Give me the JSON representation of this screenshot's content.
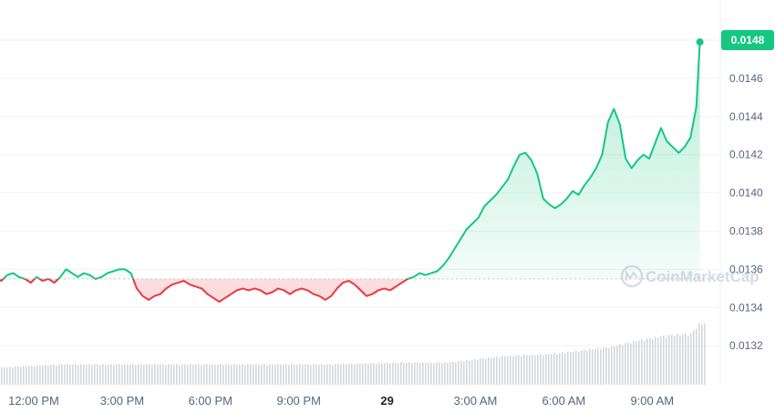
{
  "chart_data": {
    "type": "area",
    "watermark": "CoinMarketCap",
    "y_ticks": [
      "0.0148",
      "0.0146",
      "0.0144",
      "0.0142",
      "0.0140",
      "0.0138",
      "0.0136",
      "0.0134",
      "0.0132"
    ],
    "y_tick_values": [
      0.0148,
      0.0146,
      0.0144,
      0.0142,
      0.014,
      0.0138,
      0.0136,
      0.0134,
      0.0132
    ],
    "x_ticks": [
      {
        "label": "12:00 PM",
        "hour": 0,
        "bold": false
      },
      {
        "label": "3:00 PM",
        "hour": 3,
        "bold": false
      },
      {
        "label": "6:00 PM",
        "hour": 6,
        "bold": false
      },
      {
        "label": "9:00 PM",
        "hour": 9,
        "bold": false
      },
      {
        "label": "29",
        "hour": 12,
        "bold": true
      },
      {
        "label": "3:00 AM",
        "hour": 15,
        "bold": false
      },
      {
        "label": "6:00 AM",
        "hour": 18,
        "bold": false
      },
      {
        "label": "9:00 AM",
        "hour": 21,
        "bold": false
      }
    ],
    "baseline": 0.01355,
    "last_price": "0.0148",
    "last_value": 0.01479,
    "ylim": [
      0.0131,
      0.0149
    ],
    "colors": {
      "up": "#16c784",
      "down": "#ea3943",
      "tag": "#16c784",
      "grid": "#eff2f5",
      "volume": "#d4d7dc"
    },
    "series": [
      [
        -1.3,
        0.01355
      ],
      [
        -1.1,
        0.01354
      ],
      [
        -0.9,
        0.01357
      ],
      [
        -0.7,
        0.01358
      ],
      [
        -0.5,
        0.01356
      ],
      [
        -0.3,
        0.01355
      ],
      [
        -0.1,
        0.01353
      ],
      [
        0.1,
        0.01356
      ],
      [
        0.3,
        0.01354
      ],
      [
        0.5,
        0.01355
      ],
      [
        0.7,
        0.01353
      ],
      [
        0.9,
        0.01356
      ],
      [
        1.1,
        0.0136
      ],
      [
        1.3,
        0.01358
      ],
      [
        1.5,
        0.01356
      ],
      [
        1.7,
        0.01358
      ],
      [
        1.9,
        0.01357
      ],
      [
        2.1,
        0.01355
      ],
      [
        2.3,
        0.01356
      ],
      [
        2.5,
        0.01358
      ],
      [
        2.7,
        0.01359
      ],
      [
        2.9,
        0.0136
      ],
      [
        3.1,
        0.0136
      ],
      [
        3.3,
        0.01358
      ],
      [
        3.5,
        0.0135
      ],
      [
        3.7,
        0.01346
      ],
      [
        3.9,
        0.01344
      ],
      [
        4.1,
        0.01346
      ],
      [
        4.3,
        0.01347
      ],
      [
        4.5,
        0.0135
      ],
      [
        4.7,
        0.01352
      ],
      [
        4.9,
        0.01353
      ],
      [
        5.1,
        0.01354
      ],
      [
        5.3,
        0.01352
      ],
      [
        5.5,
        0.01351
      ],
      [
        5.7,
        0.0135
      ],
      [
        5.9,
        0.01347
      ],
      [
        6.1,
        0.01345
      ],
      [
        6.3,
        0.01343
      ],
      [
        6.5,
        0.01345
      ],
      [
        6.7,
        0.01347
      ],
      [
        6.9,
        0.01349
      ],
      [
        7.1,
        0.0135
      ],
      [
        7.3,
        0.01349
      ],
      [
        7.5,
        0.0135
      ],
      [
        7.7,
        0.01349
      ],
      [
        7.9,
        0.01347
      ],
      [
        8.1,
        0.01348
      ],
      [
        8.3,
        0.0135
      ],
      [
        8.5,
        0.01349
      ],
      [
        8.7,
        0.01347
      ],
      [
        8.9,
        0.01349
      ],
      [
        9.1,
        0.0135
      ],
      [
        9.3,
        0.01349
      ],
      [
        9.5,
        0.01347
      ],
      [
        9.7,
        0.01346
      ],
      [
        9.9,
        0.01344
      ],
      [
        10.1,
        0.01346
      ],
      [
        10.3,
        0.0135
      ],
      [
        10.5,
        0.01353
      ],
      [
        10.7,
        0.01354
      ],
      [
        10.9,
        0.01352
      ],
      [
        11.1,
        0.01349
      ],
      [
        11.3,
        0.01346
      ],
      [
        11.5,
        0.01347
      ],
      [
        11.7,
        0.01349
      ],
      [
        11.9,
        0.0135
      ],
      [
        12.1,
        0.01349
      ],
      [
        12.3,
        0.01351
      ],
      [
        12.5,
        0.01353
      ],
      [
        12.7,
        0.01355
      ],
      [
        12.9,
        0.01356
      ],
      [
        13.1,
        0.01358
      ],
      [
        13.3,
        0.01357
      ],
      [
        13.5,
        0.01358
      ],
      [
        13.7,
        0.01359
      ],
      [
        13.9,
        0.01362
      ],
      [
        14.1,
        0.01366
      ],
      [
        14.3,
        0.01371
      ],
      [
        14.5,
        0.01376
      ],
      [
        14.7,
        0.01381
      ],
      [
        14.9,
        0.01384
      ],
      [
        15.1,
        0.01387
      ],
      [
        15.3,
        0.01393
      ],
      [
        15.5,
        0.01396
      ],
      [
        15.7,
        0.01399
      ],
      [
        15.9,
        0.01403
      ],
      [
        16.1,
        0.01407
      ],
      [
        16.3,
        0.01414
      ],
      [
        16.5,
        0.0142
      ],
      [
        16.7,
        0.01421
      ],
      [
        16.9,
        0.01417
      ],
      [
        17.1,
        0.0141
      ],
      [
        17.3,
        0.01397
      ],
      [
        17.5,
        0.01394
      ],
      [
        17.7,
        0.01392
      ],
      [
        17.9,
        0.01394
      ],
      [
        18.1,
        0.01397
      ],
      [
        18.3,
        0.01401
      ],
      [
        18.5,
        0.01399
      ],
      [
        18.7,
        0.01404
      ],
      [
        18.9,
        0.01408
      ],
      [
        19.1,
        0.01413
      ],
      [
        19.3,
        0.0142
      ],
      [
        19.5,
        0.01437
      ],
      [
        19.7,
        0.01444
      ],
      [
        19.9,
        0.01436
      ],
      [
        20.1,
        0.01418
      ],
      [
        20.3,
        0.01413
      ],
      [
        20.5,
        0.01417
      ],
      [
        20.7,
        0.0142
      ],
      [
        20.9,
        0.01418
      ],
      [
        21.1,
        0.01426
      ],
      [
        21.3,
        0.01434
      ],
      [
        21.5,
        0.01427
      ],
      [
        21.7,
        0.01424
      ],
      [
        21.9,
        0.01421
      ],
      [
        22.1,
        0.01424
      ],
      [
        22.3,
        0.01429
      ],
      [
        22.5,
        0.01445
      ],
      [
        22.62,
        0.01479
      ]
    ],
    "volume": [
      [
        -1.3,
        0.1
      ],
      [
        1.0,
        0.12
      ],
      [
        4.0,
        0.12
      ],
      [
        7.0,
        0.12
      ],
      [
        10.0,
        0.12
      ],
      [
        12.5,
        0.13
      ],
      [
        14.0,
        0.13
      ],
      [
        15.0,
        0.15
      ],
      [
        16.0,
        0.17
      ],
      [
        17.5,
        0.18
      ],
      [
        18.5,
        0.2
      ],
      [
        19.5,
        0.22
      ],
      [
        20.5,
        0.26
      ],
      [
        21.5,
        0.29
      ],
      [
        22.3,
        0.3
      ],
      [
        22.6,
        0.36
      ]
    ]
  }
}
